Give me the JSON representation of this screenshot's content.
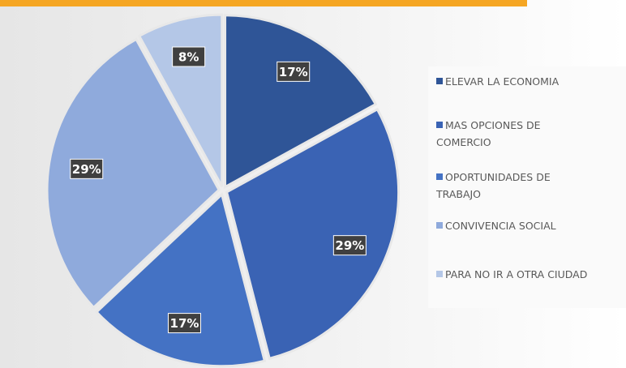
{
  "chart_data": {
    "type": "pie",
    "categories": [
      "ELEVAR LA ECONOMIA",
      "MAS OPCIONES DE COMERCIO",
      "OPORTUNIDADES DE TRABAJO",
      "CONVIVENCIA SOCIAL",
      "PARA NO IR A OTRA CIUDAD"
    ],
    "values": [
      17,
      29,
      17,
      29,
      8
    ],
    "value_labels": [
      "17%",
      "29%",
      "17%",
      "29%",
      "8%"
    ],
    "colors": [
      "#2f5597",
      "#3a63b4",
      "#4472c4",
      "#8faadc",
      "#b4c7e7"
    ],
    "legend": "right"
  }
}
